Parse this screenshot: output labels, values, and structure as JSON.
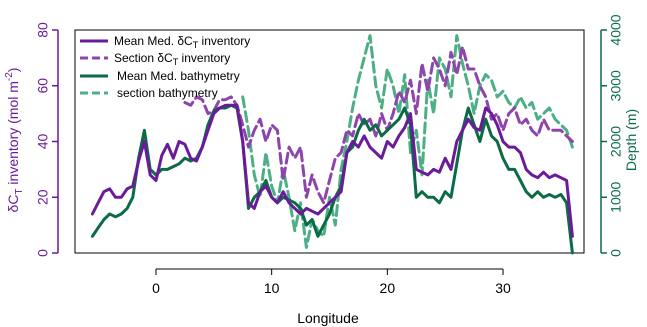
{
  "chart_data": {
    "type": "line",
    "xlabel": "Longitude",
    "ylabel_left": "δC_T inventory (mol m^-2)",
    "ylabel_right": "Depth (m)",
    "xlim": [
      -7,
      37
    ],
    "ylim_left": [
      0,
      80
    ],
    "ylim_right": [
      0,
      4000
    ],
    "x_ticks": [
      0,
      10,
      20,
      30
    ],
    "y_left_ticks": [
      0,
      20,
      40,
      60,
      80
    ],
    "y_right_ticks": [
      0,
      1000,
      2000,
      3000,
      4000
    ],
    "grid": false,
    "legend_position": "top-left",
    "colors": {
      "inventory": "#6a1b9a",
      "section_inventory": "#8e44ad",
      "bathymetry": "#0b6b45",
      "section_bathymetry": "#4caf85",
      "left_axis": "#6a1b9a",
      "right_axis": "#0b6b45"
    },
    "legend": [
      {
        "label": "Mean Med. δC_T inventory",
        "series": "mean_inventory"
      },
      {
        "label": "Section δC_T inventory",
        "series": "section_inventory"
      },
      {
        "label": "Mean Med. bathymetry",
        "series": "mean_bathymetry"
      },
      {
        "label": "section bathymetry",
        "series": "section_bathymetry"
      }
    ],
    "series": [
      {
        "key": "mean_inventory",
        "axis": "left",
        "style": "solid",
        "x": [
          -5.5,
          -5.0,
          -4.5,
          -4.0,
          -3.5,
          -3.0,
          -2.5,
          -2.0,
          -1.5,
          -1.0,
          -0.5,
          0.0,
          0.5,
          1.0,
          1.5,
          2.0,
          2.5,
          3.0,
          3.5,
          4.0,
          4.5,
          5.0,
          5.5,
          6.0,
          6.5,
          7.0,
          7.5,
          8.0,
          8.5,
          9.0,
          9.5,
          10.0,
          10.5,
          11.0,
          11.5,
          12.0,
          12.5,
          13.0,
          13.5,
          14.0,
          14.5,
          15.0,
          15.5,
          16.0,
          16.5,
          17.0,
          17.5,
          18.0,
          18.5,
          19.0,
          19.5,
          20.0,
          20.5,
          21.0,
          21.5,
          22.0,
          22.5,
          23.0,
          23.5,
          24.0,
          24.5,
          25.0,
          25.5,
          26.0,
          26.5,
          27.0,
          27.5,
          28.0,
          28.5,
          29.0,
          29.5,
          30.0,
          30.5,
          31.0,
          31.5,
          32.0,
          32.5,
          33.0,
          33.5,
          34.0,
          34.5,
          35.0,
          35.5,
          36.0
        ],
        "values": [
          14,
          18,
          22,
          23,
          20,
          20,
          23,
          24,
          33,
          40,
          28,
          26,
          35,
          39,
          34,
          40,
          39,
          34,
          33,
          38,
          44,
          50,
          52,
          53,
          53,
          53,
          40,
          18,
          16,
          22,
          24,
          20,
          18,
          22,
          18,
          16,
          14,
          16,
          15,
          14,
          16,
          18,
          20,
          22,
          36,
          40,
          38,
          42,
          38,
          36,
          34,
          40,
          38,
          42,
          45,
          50,
          30,
          29,
          28,
          30,
          29,
          34,
          30,
          40,
          44,
          48,
          45,
          44,
          52,
          50,
          46,
          40,
          38,
          38,
          36,
          30,
          28,
          27,
          29,
          27,
          28,
          27,
          26,
          6
        ]
      },
      {
        "key": "section_inventory",
        "axis": "left",
        "style": "dashed",
        "x": [
          2.5,
          3.0,
          3.5,
          4.0,
          4.5,
          5.0,
          5.5,
          6.0,
          6.5,
          7.0,
          7.5,
          8.0,
          8.5,
          9.0,
          9.5,
          10.0,
          10.5,
          11.0,
          11.5,
          12.0,
          12.5,
          13.0,
          13.5,
          14.0,
          14.5,
          15.0,
          15.5,
          16.0,
          16.5,
          17.0,
          17.5,
          18.0,
          18.5,
          19.0,
          19.5,
          20.0,
          20.5,
          21.0,
          21.5,
          22.0,
          22.5,
          23.0,
          23.5,
          24.0,
          24.5,
          25.0,
          25.5,
          26.0,
          26.5,
          27.0,
          27.5,
          28.0,
          28.5,
          29.0,
          29.5,
          30.0,
          30.5,
          31.0,
          31.5,
          32.0,
          32.5,
          33.0,
          33.5,
          34.0,
          34.5,
          35.0,
          35.5,
          36.0
        ],
        "values": [
          54,
          53,
          56,
          55,
          50,
          51,
          55,
          55,
          56,
          53,
          46,
          38,
          44,
          48,
          40,
          46,
          44,
          26,
          38,
          34,
          38,
          20,
          28,
          22,
          18,
          26,
          34,
          36,
          44,
          42,
          50,
          46,
          48,
          42,
          50,
          44,
          50,
          58,
          54,
          62,
          50,
          68,
          58,
          70,
          66,
          60,
          72,
          64,
          74,
          66,
          66,
          60,
          56,
          48,
          50,
          44,
          50,
          52,
          46,
          48,
          44,
          42,
          48,
          44,
          44,
          44,
          42,
          40
        ]
      },
      {
        "key": "mean_bathymetry",
        "axis": "right",
        "style": "solid",
        "x": [
          -5.5,
          -5.0,
          -4.5,
          -4.0,
          -3.5,
          -3.0,
          -2.5,
          -2.0,
          -1.5,
          -1.0,
          -0.5,
          0.0,
          0.5,
          1.0,
          1.5,
          2.0,
          2.5,
          3.0,
          3.5,
          4.0,
          4.5,
          5.0,
          5.5,
          6.0,
          6.5,
          7.0,
          7.5,
          8.0,
          8.5,
          9.0,
          9.5,
          10.0,
          10.5,
          11.0,
          11.5,
          12.0,
          12.5,
          13.0,
          13.5,
          14.0,
          14.5,
          15.0,
          15.5,
          16.0,
          16.5,
          17.0,
          17.5,
          18.0,
          18.5,
          19.0,
          19.5,
          20.0,
          20.5,
          21.0,
          21.5,
          22.0,
          22.5,
          23.0,
          23.5,
          24.0,
          24.5,
          25.0,
          25.5,
          26.0,
          26.5,
          27.0,
          27.5,
          28.0,
          28.5,
          29.0,
          29.5,
          30.0,
          30.5,
          31.0,
          31.5,
          32.0,
          32.5,
          33.0,
          33.5,
          34.0,
          34.5,
          35.0,
          35.5,
          36.0
        ],
        "values": [
          300,
          450,
          600,
          700,
          650,
          700,
          800,
          1000,
          1700,
          2200,
          1500,
          1400,
          1500,
          1500,
          1550,
          1600,
          1700,
          1650,
          1700,
          1900,
          2300,
          2550,
          2600,
          2600,
          2650,
          2600,
          2000,
          800,
          1000,
          1100,
          1300,
          1000,
          900,
          1000,
          950,
          900,
          800,
          500,
          600,
          300,
          500,
          700,
          1000,
          1200,
          1800,
          1900,
          2200,
          2400,
          2200,
          2300,
          2100,
          2200,
          2300,
          2400,
          2600,
          2300,
          1000,
          1100,
          1000,
          1000,
          900,
          1100,
          1000,
          1600,
          2200,
          2600,
          2300,
          2000,
          2400,
          2100,
          2000,
          1700,
          1500,
          1500,
          1300,
          1100,
          1000,
          1100,
          1000,
          1050,
          1000,
          1050,
          900,
          0
        ]
      },
      {
        "key": "section_bathymetry",
        "axis": "right",
        "style": "dashed",
        "x": [
          7.5,
          8.0,
          8.5,
          9.0,
          9.5,
          10.0,
          10.5,
          11.0,
          11.5,
          12.0,
          12.5,
          13.0,
          13.5,
          14.0,
          14.5,
          15.0,
          15.5,
          16.0,
          16.5,
          17.0,
          17.5,
          18.0,
          18.5,
          19.0,
          19.5,
          20.0,
          20.5,
          21.0,
          21.5,
          22.0,
          22.5,
          23.0,
          23.5,
          24.0,
          24.5,
          25.0,
          25.5,
          26.0,
          26.5,
          27.0,
          27.5,
          28.0,
          28.5,
          29.0,
          29.5,
          30.0,
          30.5,
          31.0,
          31.5,
          32.0,
          32.5,
          33.0,
          33.5,
          34.0,
          34.5,
          35.0,
          35.5,
          36.0
        ],
        "values": [
          2800,
          2200,
          1400,
          1000,
          1800,
          1200,
          900,
          1500,
          1000,
          400,
          900,
          100,
          600,
          400,
          300,
          1000,
          500,
          1500,
          2000,
          2600,
          3100,
          3500,
          3900,
          3000,
          2600,
          3300,
          3000,
          2500,
          3200,
          1800,
          2200,
          1400,
          3100,
          2500,
          3500,
          3300,
          2800,
          3900,
          3400,
          3000,
          2500,
          3000,
          3200,
          3100,
          2800,
          2900,
          2700,
          2600,
          2800,
          2600,
          2700,
          2400,
          2500,
          2600,
          2400,
          2300,
          2200,
          1900
        ]
      }
    ]
  }
}
